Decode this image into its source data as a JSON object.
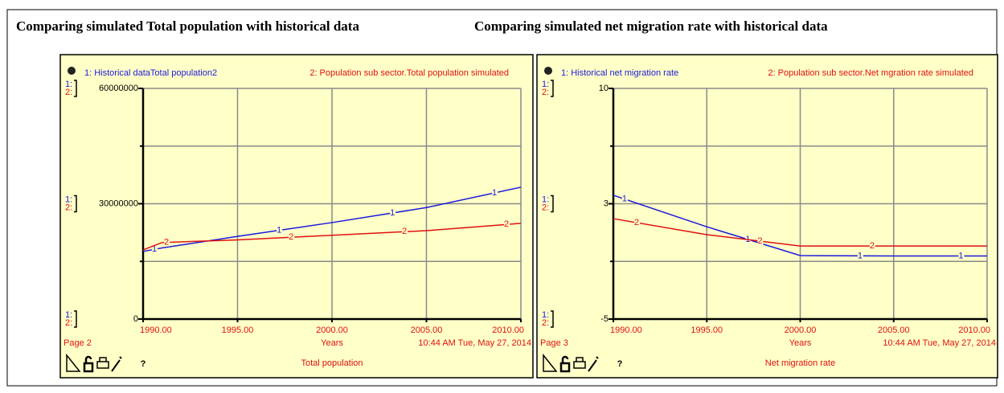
{
  "chart_data": [
    {
      "type": "line",
      "title": "Comparing simulated Total population with historical data",
      "footer_title": "Total population",
      "page": "Page 2",
      "xlabel": "Years",
      "timestamp": "10:44 AM   Tue, May 27, 2014",
      "help": "?",
      "x": [
        1990,
        1991,
        1995,
        2000,
        2005,
        2010
      ],
      "xlim": [
        1990,
        2010
      ],
      "xticks": [
        {
          "value": 1990,
          "label": "1990.00"
        },
        {
          "value": 1995,
          "label": "1995.00"
        },
        {
          "value": 2000,
          "label": "2000.00"
        },
        {
          "value": 2005,
          "label": "2005.00"
        },
        {
          "value": 2010,
          "label": "2010.00"
        }
      ],
      "ylim": [
        0,
        60000000
      ],
      "yticks": [
        0,
        30000000,
        60000000
      ],
      "ygrid": [
        0,
        15000000,
        30000000,
        45000000,
        60000000
      ],
      "series": [
        {
          "name": "1: Historical dataTotal population2",
          "key": "1:",
          "marker": "1",
          "color": "#1a1adc",
          "values": [
            17600000,
            18500000,
            21500000,
            25100000,
            29000000,
            34300000
          ]
        },
        {
          "name": "2: Population sub sector.Total population simulated",
          "key": "2:",
          "marker": "2",
          "color": "#e01010",
          "values": [
            18000000,
            19900000,
            20600000,
            21800000,
            23000000,
            24900000
          ]
        }
      ]
    },
    {
      "type": "line",
      "title": "Comparing simulated net migration rate with historical data",
      "footer_title": "Net migration rate",
      "page": "Page 3",
      "xlabel": "Years",
      "timestamp": "10:44 AM   Tue, May 27, 2014",
      "help": "?",
      "x": [
        1990,
        1995,
        2000,
        2005,
        2010
      ],
      "xlim": [
        1990,
        2010
      ],
      "xticks": [
        {
          "value": 1990,
          "label": "1990.00"
        },
        {
          "value": 1995,
          "label": "1995.00"
        },
        {
          "value": 2000,
          "label": "2000.00"
        },
        {
          "value": 2005,
          "label": "2005.00"
        },
        {
          "value": 2010,
          "label": "2010.00"
        }
      ],
      "ylim": [
        -5,
        10
      ],
      "yticks": [
        -5,
        {
          "value": 2.5,
          "label": "3"
        },
        10
      ],
      "ygrid": [
        -5,
        -1.25,
        2.5,
        6.25,
        10
      ],
      "series": [
        {
          "name": "1: Historical net migration rate",
          "key": "1:",
          "marker": "1",
          "color": "#1a1adc",
          "values": [
            3.05,
            1.0,
            -0.87,
            -0.9,
            -0.9
          ]
        },
        {
          "name": "2: Population sub sector.Net mgration rate simulated",
          "key": "2:",
          "marker": "2",
          "color": "#e01010",
          "values": [
            1.53,
            0.49,
            -0.25,
            -0.25,
            -0.25
          ]
        }
      ]
    }
  ]
}
